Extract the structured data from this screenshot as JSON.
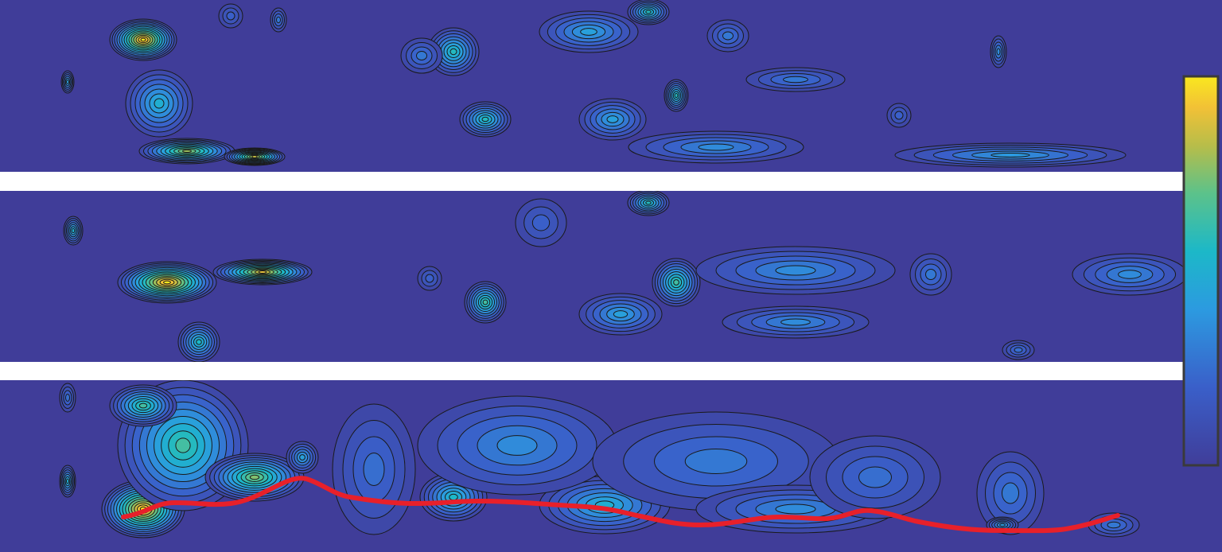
{
  "chart_data": {
    "type": "contour",
    "colorbar": true
  }
}
